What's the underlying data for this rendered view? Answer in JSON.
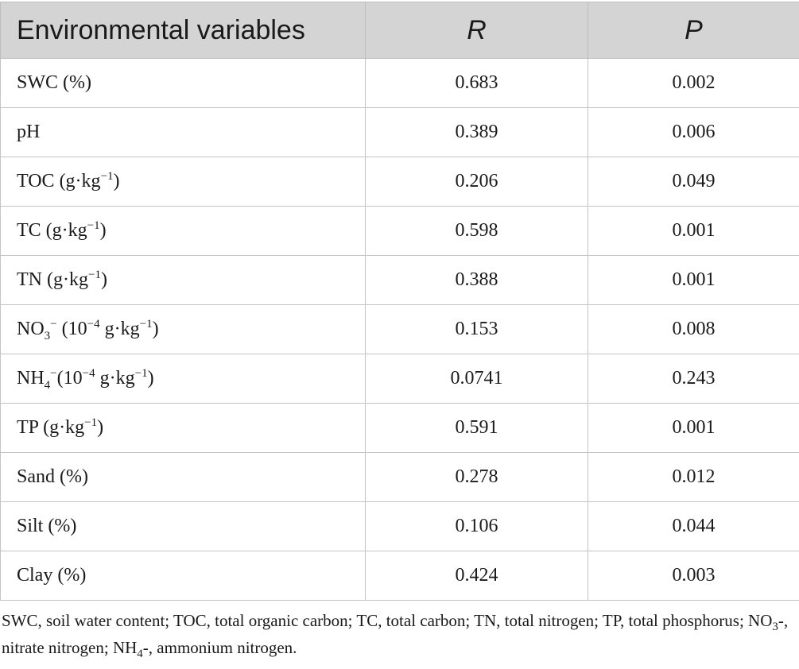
{
  "table": {
    "headers": [
      "Environmental variables",
      "R",
      "P"
    ],
    "rows": [
      {
        "var_main": "SWC (%)",
        "var_sup1": "",
        "var_mid": "",
        "var_sup2": "",
        "var_end": "",
        "r": "0.683",
        "p": "0.002"
      },
      {
        "var_main": "pH",
        "var_sup1": "",
        "var_mid": "",
        "var_sup2": "",
        "var_end": "",
        "r": "0.389",
        "p": "0.006"
      },
      {
        "var_main": "TOC (g·kg",
        "var_sup1": "−1",
        "var_mid": ")",
        "var_sup2": "",
        "var_end": "",
        "r": "0.206",
        "p": "0.049"
      },
      {
        "var_main": "TC (g·kg",
        "var_sup1": "−1",
        "var_mid": ")",
        "var_sup2": "",
        "var_end": "",
        "r": "0.598",
        "p": "0.001"
      },
      {
        "var_main": "TN (g·kg",
        "var_sup1": "−1",
        "var_mid": ")",
        "var_sup2": "",
        "var_end": "",
        "r": "0.388",
        "p": "0.001"
      },
      {
        "var_main": "TP (g·kg",
        "var_sup1": "−1",
        "var_mid": ")",
        "var_sup2": "",
        "var_end": "",
        "r": "0.591",
        "p": "0.001"
      },
      {
        "var_main": "Sand (%)",
        "var_sup1": "",
        "var_mid": "",
        "var_sup2": "",
        "var_end": "",
        "r": "0.278",
        "p": "0.012"
      },
      {
        "var_main": "Silt (%)",
        "var_sup1": "",
        "var_mid": "",
        "var_sup2": "",
        "var_end": "",
        "r": "0.106",
        "p": "0.044"
      },
      {
        "var_main": "Clay (%)",
        "var_sup1": "",
        "var_mid": "",
        "var_sup2": "",
        "var_end": "",
        "r": "0.424",
        "p": "0.003"
      }
    ],
    "no3": {
      "a": "NO",
      "sub": "3",
      "sup": "−",
      "b": " (10",
      "exp": "−4",
      "c": " g·kg",
      "exp2": "−1",
      "d": ")",
      "r": "0.153",
      "p": "0.008"
    },
    "nh4": {
      "a": "NH",
      "sub": "4",
      "sup": "−",
      "b": "(10",
      "exp": "−4",
      "c": " g·kg",
      "exp2": "−1",
      "d": ")",
      "r": "0.0741",
      "p": "0.243"
    }
  },
  "footnote": {
    "part1": "SWC, soil water content; TOC, total organic carbon; TC, total carbon; TN, total nitrogen; TP, total phosphorus; NO",
    "sub1": "3",
    "part2": "-, nitrate nitrogen; NH",
    "sub2": "4",
    "part3": "-, ammonium nitrogen."
  }
}
